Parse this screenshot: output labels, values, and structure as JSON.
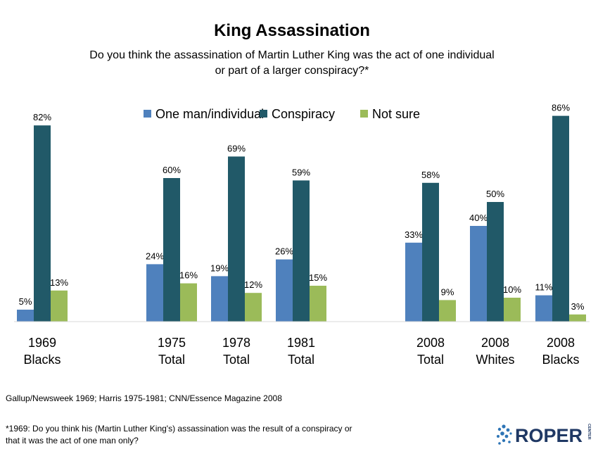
{
  "chart_data": {
    "type": "bar",
    "title": "King Assassination",
    "subtitle": [
      "Do you think the assassination of Martin Luther King was the act of one individual",
      "or part of a larger conspiracy?*"
    ],
    "categories": [
      [
        "1969",
        "Blacks"
      ],
      [
        "1975",
        "Total"
      ],
      [
        "1978",
        "Total"
      ],
      [
        "1981",
        "Total"
      ],
      [
        "2008",
        "Total"
      ],
      [
        "2008",
        "Whites"
      ],
      [
        "2008",
        "Blacks"
      ]
    ],
    "series": [
      {
        "name": "One man/individual",
        "color": "#4f81bd",
        "values": [
          5,
          24,
          19,
          26,
          33,
          40,
          11
        ]
      },
      {
        "name": "Conspiracy",
        "color": "#215968",
        "values": [
          82,
          60,
          69,
          59,
          58,
          50,
          86
        ]
      },
      {
        "name": "Not sure",
        "color": "#9bbb59",
        "values": [
          13,
          16,
          12,
          15,
          9,
          10,
          3
        ]
      }
    ],
    "value_suffix": "%",
    "ylim": [
      0,
      100
    ],
    "grid": false,
    "legend": "top"
  },
  "source": "Gallup/Newsweek 1969; Harris 1975-1981; CNN/Essence Magazine 2008",
  "footnote": [
    "*1969: Do you think his (Martin Luther King's) assassination was the result of a conspiracy or",
    "that it was the act of one man only?"
  ],
  "logo": {
    "text": "ROPER",
    "side_text": "CENTER",
    "text_color": "#1f3864",
    "dot_color": "#2e75b6"
  }
}
